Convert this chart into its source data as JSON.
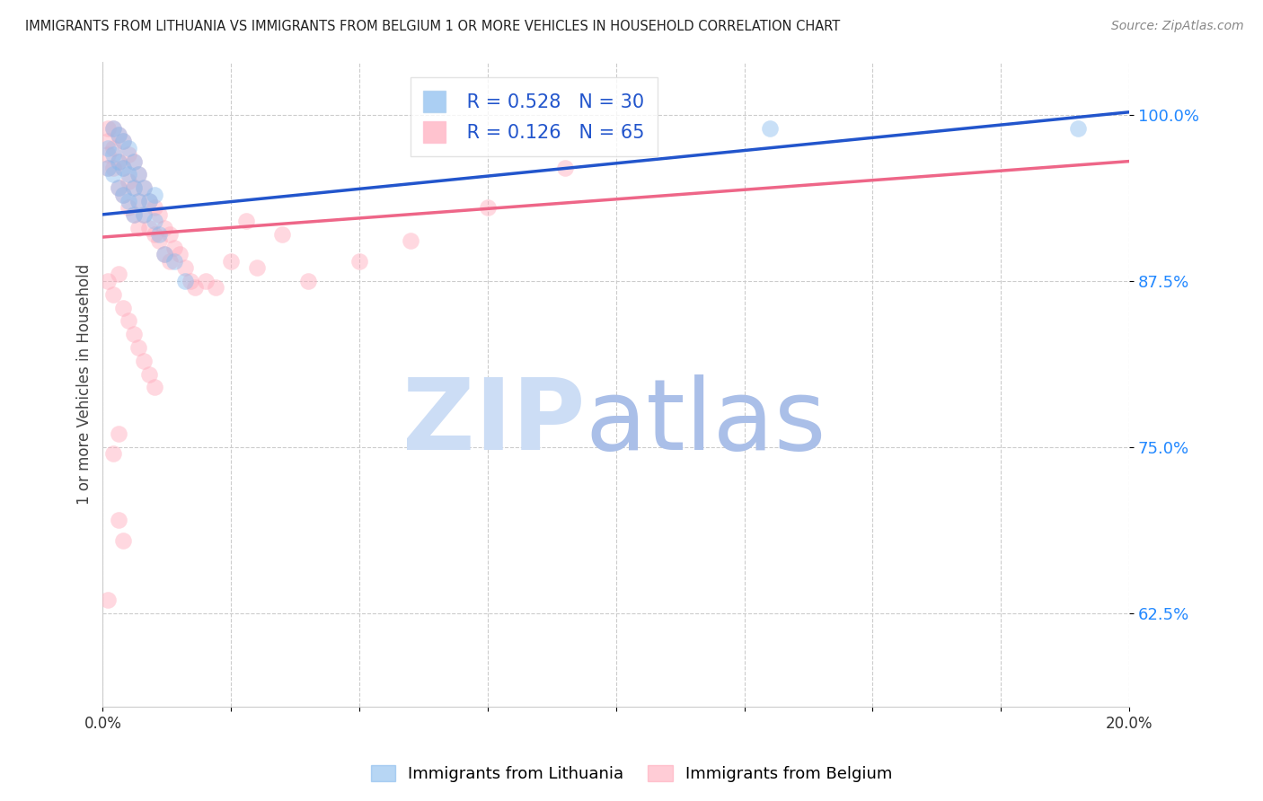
{
  "title": "IMMIGRANTS FROM LITHUANIA VS IMMIGRANTS FROM BELGIUM 1 OR MORE VEHICLES IN HOUSEHOLD CORRELATION CHART",
  "source": "Source: ZipAtlas.com",
  "ylabel": "1 or more Vehicles in Household",
  "xmin": 0.0,
  "xmax": 0.2,
  "ymin": 0.555,
  "ymax": 1.04,
  "yticks": [
    0.625,
    0.75,
    0.875,
    1.0
  ],
  "ytick_labels": [
    "62.5%",
    "75.0%",
    "87.5%",
    "100.0%"
  ],
  "xticks": [
    0.0,
    0.025,
    0.05,
    0.075,
    0.1,
    0.125,
    0.15,
    0.175,
    0.2
  ],
  "xtick_labels": [
    "0.0%",
    "",
    "",
    "",
    "",
    "",
    "",
    "",
    "20.0%"
  ],
  "legend_labels": [
    "Immigrants from Lithuania",
    "Immigrants from Belgium"
  ],
  "r_lithuania": 0.528,
  "n_lithuania": 30,
  "r_belgium": 0.126,
  "n_belgium": 65,
  "color_lithuania": "#88BBEE",
  "color_belgium": "#FFAABB",
  "color_trendline_lithuania": "#2255CC",
  "color_trendline_belgium": "#EE6688",
  "background_color": "#FFFFFF",
  "lithuania_x": [
    0.001,
    0.001,
    0.002,
    0.002,
    0.002,
    0.003,
    0.003,
    0.003,
    0.004,
    0.004,
    0.004,
    0.005,
    0.005,
    0.005,
    0.006,
    0.006,
    0.006,
    0.007,
    0.007,
    0.008,
    0.008,
    0.009,
    0.01,
    0.01,
    0.011,
    0.012,
    0.014,
    0.016,
    0.13,
    0.19
  ],
  "lithuania_y": [
    0.975,
    0.96,
    0.99,
    0.97,
    0.955,
    0.985,
    0.965,
    0.945,
    0.98,
    0.96,
    0.94,
    0.975,
    0.955,
    0.935,
    0.965,
    0.945,
    0.925,
    0.955,
    0.935,
    0.945,
    0.925,
    0.935,
    0.94,
    0.92,
    0.91,
    0.895,
    0.89,
    0.875,
    0.99,
    0.99
  ],
  "belgium_x": [
    0.001,
    0.001,
    0.001,
    0.001,
    0.002,
    0.002,
    0.002,
    0.003,
    0.003,
    0.003,
    0.004,
    0.004,
    0.004,
    0.005,
    0.005,
    0.005,
    0.006,
    0.006,
    0.006,
    0.007,
    0.007,
    0.007,
    0.008,
    0.008,
    0.009,
    0.009,
    0.01,
    0.01,
    0.011,
    0.011,
    0.012,
    0.012,
    0.013,
    0.013,
    0.014,
    0.015,
    0.016,
    0.017,
    0.018,
    0.02,
    0.022,
    0.025,
    0.028,
    0.03,
    0.035,
    0.04,
    0.05,
    0.06,
    0.075,
    0.09,
    0.001,
    0.002,
    0.003,
    0.004,
    0.005,
    0.006,
    0.007,
    0.008,
    0.009,
    0.01,
    0.002,
    0.003,
    0.004,
    0.001,
    0.003
  ],
  "belgium_y": [
    0.99,
    0.98,
    0.97,
    0.96,
    0.99,
    0.975,
    0.96,
    0.985,
    0.965,
    0.945,
    0.98,
    0.96,
    0.94,
    0.97,
    0.95,
    0.93,
    0.965,
    0.945,
    0.925,
    0.955,
    0.935,
    0.915,
    0.945,
    0.925,
    0.935,
    0.915,
    0.93,
    0.91,
    0.925,
    0.905,
    0.915,
    0.895,
    0.91,
    0.89,
    0.9,
    0.895,
    0.885,
    0.875,
    0.87,
    0.875,
    0.87,
    0.89,
    0.92,
    0.885,
    0.91,
    0.875,
    0.89,
    0.905,
    0.93,
    0.96,
    0.875,
    0.865,
    0.88,
    0.855,
    0.845,
    0.835,
    0.825,
    0.815,
    0.805,
    0.795,
    0.745,
    0.695,
    0.68,
    0.635,
    0.76
  ]
}
